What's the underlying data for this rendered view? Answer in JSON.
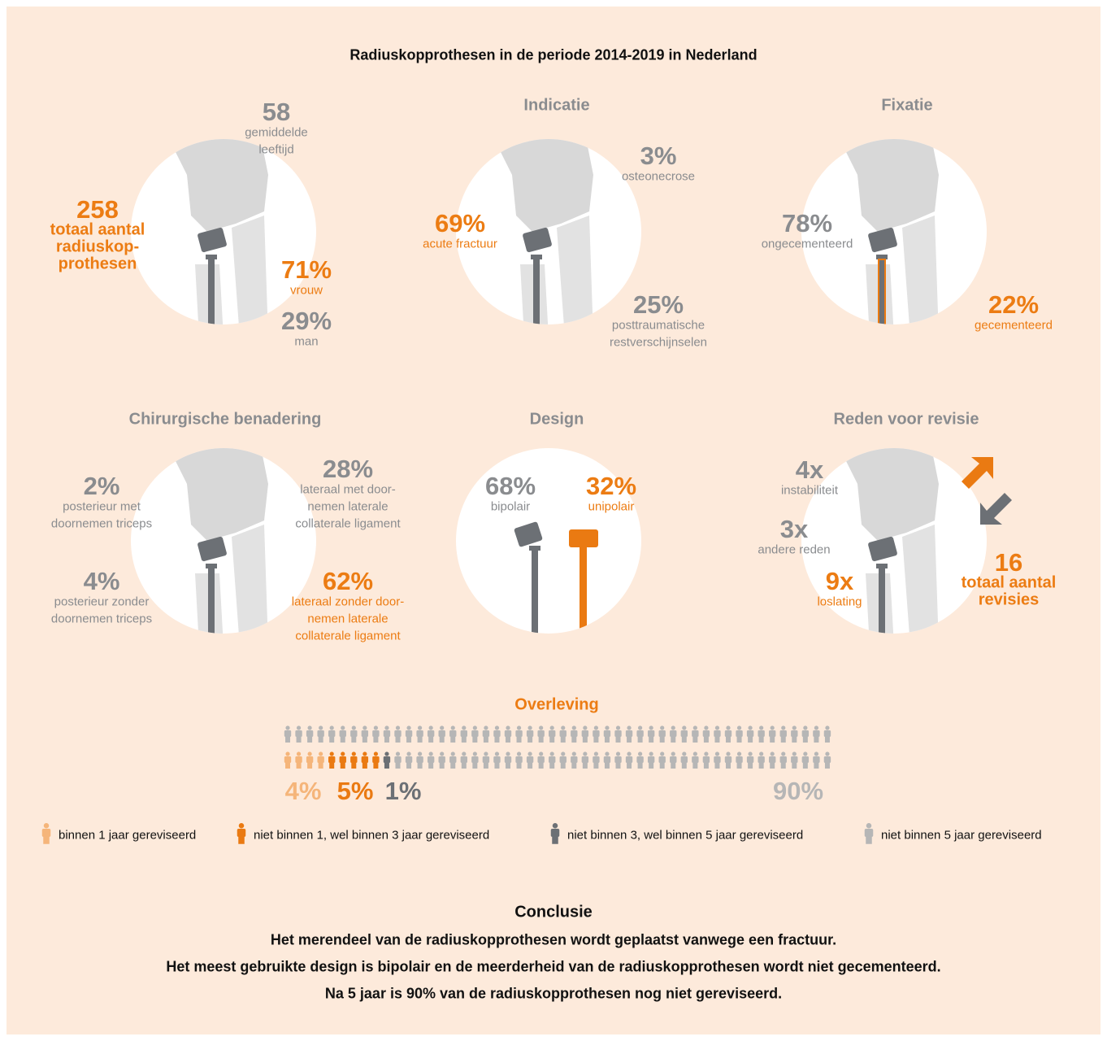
{
  "title": "Radiuskopprothesen in de periode 2014-2019 in Nederland",
  "panels": [
    {
      "stats": [
        {
          "value": "58",
          "label": [
            "gemiddelde",
            "leeftijd"
          ]
        },
        {
          "value": "258",
          "label": [
            "totaal aantal",
            "radiuskop-",
            "prothesen"
          ]
        },
        {
          "value": "71%",
          "label": [
            "vrouw"
          ]
        },
        {
          "value": "29%",
          "label": [
            "man"
          ]
        }
      ]
    },
    {
      "title": "Indicatie",
      "stats": [
        {
          "value": "3%",
          "label": [
            "osteonecrose"
          ]
        },
        {
          "value": "69%",
          "label": [
            "acute fractuur"
          ]
        },
        {
          "value": "25%",
          "label": [
            "posttraumatische",
            "restverschijnselen"
          ]
        }
      ]
    },
    {
      "title": "Fixatie",
      "stats": [
        {
          "value": "78%",
          "label": [
            "ongecementeerd"
          ]
        },
        {
          "value": "22%",
          "label": [
            "gecementeerd"
          ]
        }
      ]
    },
    {
      "title": "Chirurgische benadering",
      "stats": [
        {
          "value": "28%",
          "label": [
            "lateraal met door-",
            "nemen laterale",
            "collaterale ligament"
          ]
        },
        {
          "value": "2%",
          "label": [
            "posterieur met",
            "doornemen triceps"
          ]
        },
        {
          "value": "4%",
          "label": [
            "posterieur zonder",
            "doornemen triceps"
          ]
        },
        {
          "value": "62%",
          "label": [
            "lateraal zonder door-",
            "nemen laterale",
            "collaterale ligament"
          ]
        }
      ]
    },
    {
      "title": "Design",
      "stats": [
        {
          "value": "68%",
          "label": [
            "bipolair"
          ]
        },
        {
          "value": "32%",
          "label": [
            "unipolair"
          ]
        }
      ]
    },
    {
      "title": "Reden voor revisie",
      "stats": [
        {
          "value": "4x",
          "label": [
            "instabiliteit"
          ]
        },
        {
          "value": "3x",
          "label": [
            "andere reden"
          ]
        },
        {
          "value": "9x",
          "label": [
            "loslating"
          ]
        },
        {
          "value": "16",
          "label": [
            "totaal aantal",
            "revisies"
          ]
        }
      ]
    }
  ],
  "survival": {
    "title": "Overleving",
    "segments": [
      {
        "value": 4,
        "label": "4%",
        "legend": "binnen 1 jaar gereviseerd",
        "color": "#f5b57a"
      },
      {
        "value": 5,
        "label": "5%",
        "legend": "niet binnen 1, wel binnen 3 jaar gereviseerd",
        "color": "#ea7a12"
      },
      {
        "value": 1,
        "label": "1%",
        "legend": "niet binnen 3, wel binnen 5 jaar gereviseerd",
        "color": "#6c7075"
      },
      {
        "value": 90,
        "label": "90%",
        "legend": "niet binnen 5 jaar gereviseerd",
        "color": "#b6b6b6"
      }
    ]
  },
  "conclusion": {
    "title": "Conclusie",
    "lines": [
      "Het merendeel van de radiuskopprothesen wordt geplaatst vanwege een fractuur.",
      "Het meest gebruikte design is bipolair en de meerderheid van de radiuskopprothesen wordt niet gecementeerd.",
      "Na 5 jaar is 90% van de radiuskopprothesen nog niet gereviseerd."
    ]
  }
}
